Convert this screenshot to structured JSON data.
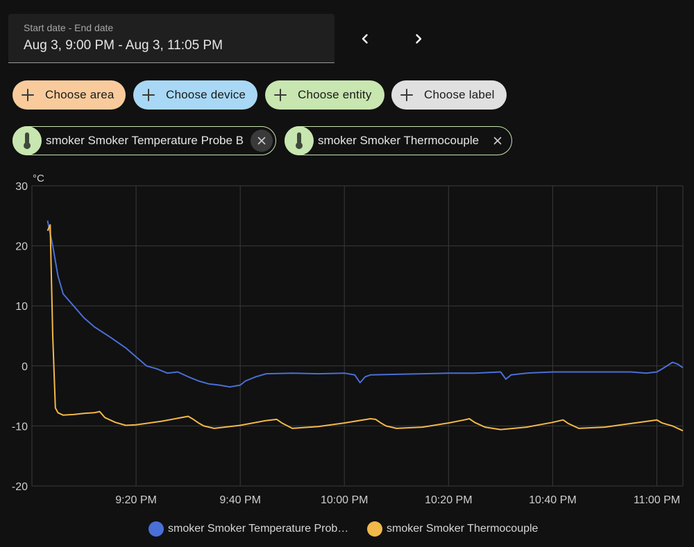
{
  "date_range": {
    "label": "Start date - End date",
    "value": "Aug 3, 9:00 PM - Aug 3, 11:05 PM"
  },
  "nav": {
    "prev_icon": "chevron-left-icon",
    "next_icon": "chevron-right-icon"
  },
  "filters": [
    {
      "label": "Choose area",
      "color": "#f9cb9c"
    },
    {
      "label": "Choose device",
      "color": "#a8d8f5"
    },
    {
      "label": "Choose entity",
      "color": "#c8e6b0"
    },
    {
      "label": "Choose label",
      "color": "#e0e0e0"
    }
  ],
  "entities": [
    {
      "label": "smoker Smoker Temperature Probe B",
      "icon": "thermometer-icon"
    },
    {
      "label": "smoker Smoker Thermocouple",
      "icon": "thermometer-icon"
    }
  ],
  "chart_data": {
    "type": "line",
    "ylabel": "°C",
    "ylim": [
      -20,
      30
    ],
    "yticks": [
      "30",
      "20",
      "10",
      "0",
      "-10",
      "-20"
    ],
    "xlim": [
      "21:00",
      "23:05"
    ],
    "xticks": [
      {
        "t": "21:20",
        "label": "9:20 PM"
      },
      {
        "t": "21:40",
        "label": "9:40 PM"
      },
      {
        "t": "22:00",
        "label": "10:00 PM"
      },
      {
        "t": "22:20",
        "label": "10:20 PM"
      },
      {
        "t": "22:40",
        "label": "10:40 PM"
      },
      {
        "t": "23:00",
        "label": "11:00 PM"
      }
    ],
    "grid": true,
    "legend_position": "bottom",
    "series": [
      {
        "name": "smoker Smoker Temperature Prob…",
        "color": "#4a6fd6",
        "x": [
          "21:03",
          "21:04",
          "21:05",
          "21:06",
          "21:08",
          "21:10",
          "21:12",
          "21:15",
          "21:18",
          "21:20",
          "21:22",
          "21:24",
          "21:26",
          "21:28",
          "21:30",
          "21:32",
          "21:34",
          "21:36",
          "21:38",
          "21:40",
          "21:41",
          "21:43",
          "21:45",
          "21:50",
          "21:55",
          "22:00",
          "22:02",
          "22:03",
          "22:04",
          "22:05",
          "22:10",
          "22:15",
          "22:20",
          "22:25",
          "22:30",
          "22:31",
          "22:32",
          "22:35",
          "22:40",
          "22:45",
          "22:50",
          "22:55",
          "22:58",
          "23:00",
          "23:01",
          "23:03",
          "23:04",
          "23:05"
        ],
        "y": [
          24.2,
          20,
          15,
          12,
          10,
          8,
          6.5,
          4.8,
          3,
          1.5,
          0,
          -0.5,
          -1.2,
          -1,
          -1.8,
          -2.5,
          -3.0,
          -3.2,
          -3.5,
          -3.2,
          -2.5,
          -1.8,
          -1.3,
          -1.2,
          -1.3,
          -1.2,
          -1.5,
          -2.8,
          -1.8,
          -1.5,
          -1.4,
          -1.3,
          -1.2,
          -1.2,
          -1.0,
          -2.2,
          -1.5,
          -1.2,
          -1.0,
          -1.0,
          -1.0,
          -1.0,
          -1.2,
          -1.0,
          -0.5,
          0.6,
          0.3,
          -0.3
        ]
      },
      {
        "name": "smoker Smoker Thermocouple",
        "color": "#f2b84b",
        "x": [
          "21:03",
          "21:03.5",
          "21:04",
          "21:04.5",
          "21:05",
          "21:06",
          "21:08",
          "21:10",
          "21:12",
          "21:13",
          "21:14",
          "21:16",
          "21:18",
          "21:20",
          "21:25",
          "21:30",
          "21:31",
          "21:32",
          "21:33",
          "21:35",
          "21:40",
          "21:45",
          "21:47",
          "21:48",
          "21:50",
          "21:55",
          "22:00",
          "22:05",
          "22:06",
          "22:07",
          "22:08",
          "22:10",
          "22:15",
          "22:20",
          "22:23",
          "22:24",
          "22:25",
          "22:27",
          "22:30",
          "22:35",
          "22:40",
          "22:42",
          "22:43",
          "22:45",
          "22:50",
          "22:55",
          "23:00",
          "23:01",
          "23:03",
          "23:05"
        ],
        "y": [
          22.5,
          23.5,
          5,
          -7,
          -7.8,
          -8.2,
          -8.1,
          -7.9,
          -7.8,
          -7.6,
          -8.6,
          -9.4,
          -9.9,
          -9.8,
          -9.2,
          -8.4,
          -8.9,
          -9.5,
          -10.0,
          -10.4,
          -9.9,
          -9.1,
          -8.9,
          -9.5,
          -10.4,
          -10.1,
          -9.5,
          -8.8,
          -8.9,
          -9.5,
          -10.0,
          -10.4,
          -10.2,
          -9.5,
          -9.0,
          -8.8,
          -9.4,
          -10.2,
          -10.6,
          -10.2,
          -9.4,
          -9.0,
          -9.6,
          -10.4,
          -10.2,
          -9.6,
          -9.0,
          -9.5,
          -10.0,
          -10.8
        ]
      }
    ]
  }
}
